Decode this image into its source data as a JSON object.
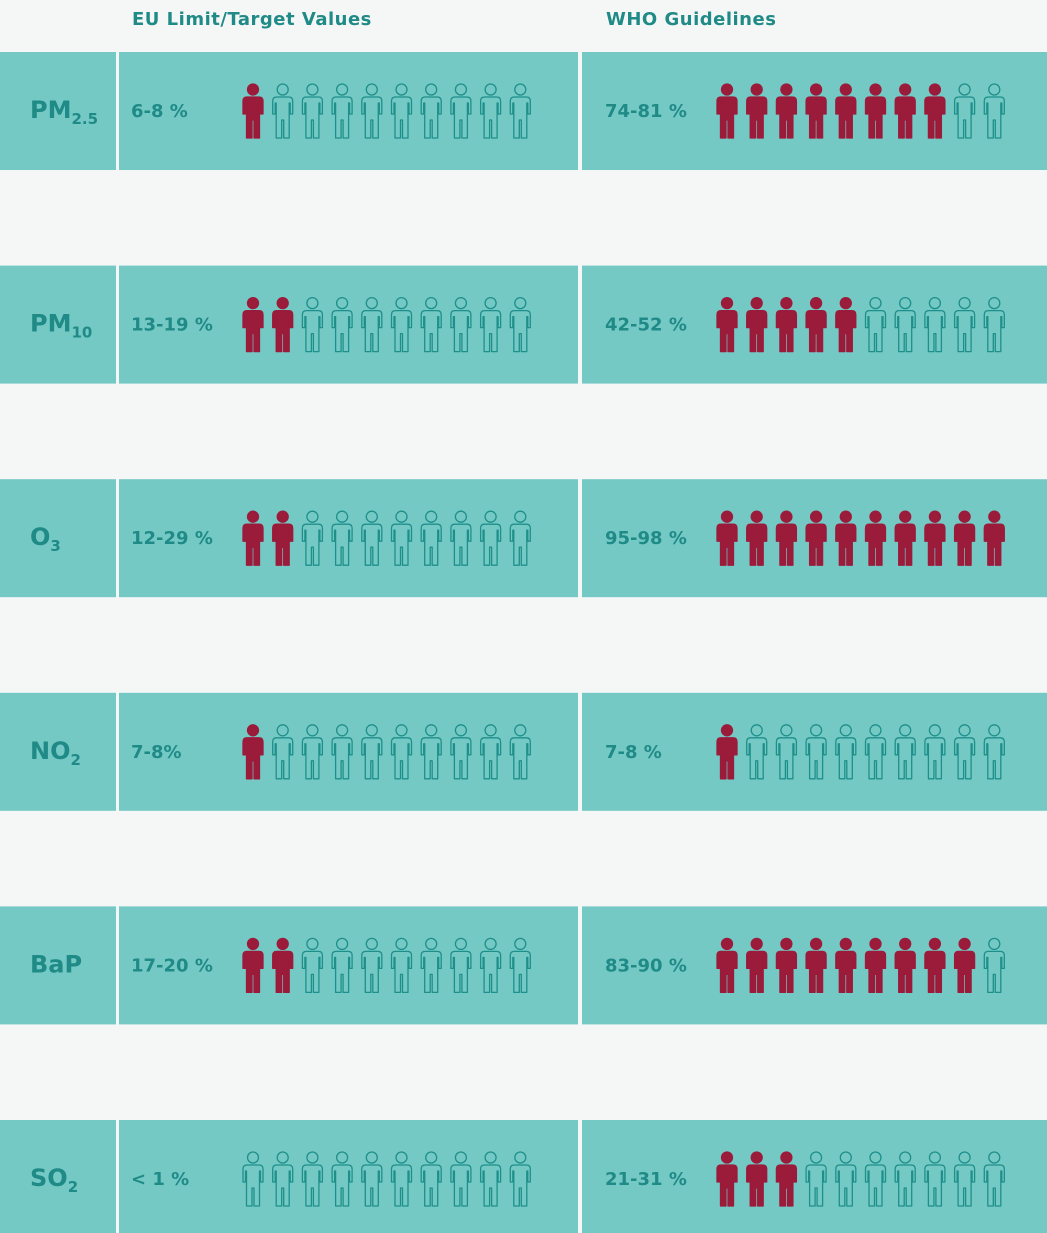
{
  "chart_data": {
    "type": "pictogram",
    "total": 10,
    "categories": [
      {
        "text": "PM",
        "sub": "2.5"
      },
      {
        "text": "PM",
        "sub": "10"
      },
      {
        "text": "O",
        "sub": "3"
      },
      {
        "text": "NO",
        "sub": "2"
      },
      {
        "text": "BaP"
      },
      {
        "text": "SO",
        "sub": "2"
      }
    ],
    "series": [
      {
        "name": "EU Limit/Target Values",
        "color": "#9b1b3b",
        "values": [
          1,
          2,
          2,
          1,
          2,
          0
        ],
        "labels": [
          "6-8 %",
          "13-19 %",
          "12-29 %",
          "7-8%",
          "17-20 %",
          "< 1 %"
        ]
      },
      {
        "name": "WHO Guidelines",
        "color": "#9b1b3b",
        "values": [
          8,
          5,
          10,
          1,
          9,
          3
        ],
        "labels": [
          "74-81 %",
          "42-52 %",
          "95-98 %",
          "7-8 %",
          "83-90 %",
          "21-31 %"
        ]
      }
    ],
    "empty_color": "#1f8f8a",
    "band_color": "#74c9c5",
    "text_color": "#1f8a86"
  }
}
